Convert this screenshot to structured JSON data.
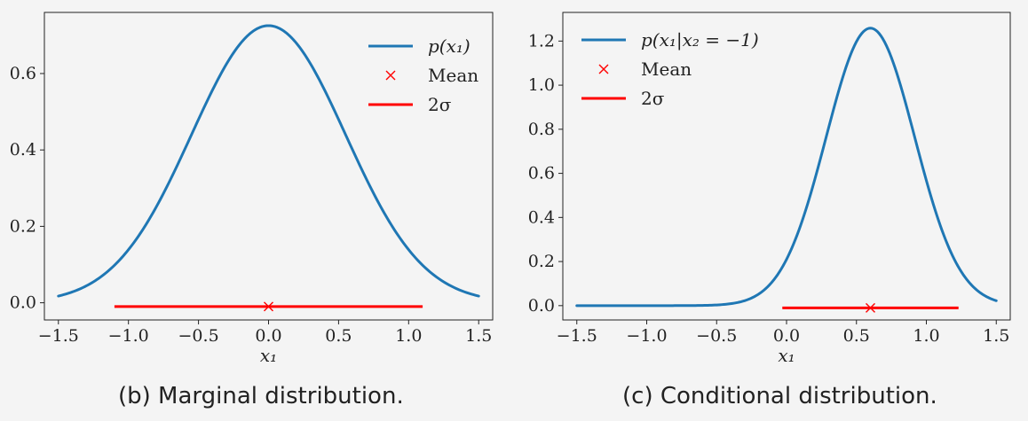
{
  "chart_data": [
    {
      "type": "line",
      "caption": "(b) Marginal distribution.",
      "xlabel": "x₁",
      "ylabel": "",
      "xlim": [
        -1.6,
        1.6
      ],
      "ylim": [
        -0.045,
        0.76
      ],
      "xticks": [
        -1.5,
        -1.0,
        -0.5,
        0.0,
        0.5,
        1.0,
        1.5
      ],
      "xtick_labels": [
        "−1.5",
        "−1.0",
        "−0.5",
        "0.0",
        "0.5",
        "1.0",
        "1.5"
      ],
      "yticks": [
        0.0,
        0.2,
        0.4,
        0.6
      ],
      "ytick_labels": [
        "0.0",
        "0.2",
        "0.4",
        "0.6"
      ],
      "series": [
        {
          "name": "p(x₁)",
          "kind": "curve",
          "color": "#1f77b4",
          "distribution": "normal",
          "mean": 0.0,
          "std": 0.55,
          "x_range": [
            -1.5,
            1.5
          ]
        }
      ],
      "mean_marker": {
        "name": "Mean",
        "x": 0.0,
        "y": -0.01,
        "color": "#ff0000"
      },
      "two_sigma": {
        "name": "2σ",
        "x_range": [
          -1.1,
          1.1
        ],
        "y": -0.01,
        "color": "#ff0000"
      },
      "legend": {
        "position": "top-right",
        "entries": [
          {
            "kind": "line",
            "label": "p(x₁)",
            "color": "#1f77b4"
          },
          {
            "kind": "marker",
            "label": "Mean",
            "color": "#ff0000"
          },
          {
            "kind": "line",
            "label": "2σ",
            "color": "#ff0000"
          }
        ]
      }
    },
    {
      "type": "line",
      "caption": "(c) Conditional distribution.",
      "xlabel": "x₁",
      "ylabel": "",
      "xlim": [
        -1.6,
        1.6
      ],
      "ylim": [
        -0.065,
        1.33
      ],
      "xticks": [
        -1.5,
        -1.0,
        -0.5,
        0.0,
        0.5,
        1.0,
        1.5
      ],
      "xtick_labels": [
        "−1.5",
        "−1.0",
        "−0.5",
        "0.0",
        "0.5",
        "1.0",
        "1.5"
      ],
      "yticks": [
        0.0,
        0.2,
        0.4,
        0.6,
        0.8,
        1.0,
        1.2
      ],
      "ytick_labels": [
        "0.0",
        "0.2",
        "0.4",
        "0.6",
        "0.8",
        "1.0",
        "1.2"
      ],
      "series": [
        {
          "name": "p(x₁|x₂ = −1)",
          "kind": "curve",
          "color": "#1f77b4",
          "distribution": "normal",
          "mean": 0.6,
          "std": 0.317,
          "x_range": [
            -1.5,
            1.5
          ]
        }
      ],
      "mean_marker": {
        "name": "Mean",
        "x": 0.6,
        "y": -0.01,
        "color": "#ff0000"
      },
      "two_sigma": {
        "name": "2σ",
        "x_range": [
          -0.03,
          1.23
        ],
        "y": -0.01,
        "color": "#ff0000"
      },
      "legend": {
        "position": "top-left",
        "entries": [
          {
            "kind": "line",
            "label": "p(x₁|x₂ = −1)",
            "color": "#1f77b4"
          },
          {
            "kind": "marker",
            "label": "Mean",
            "color": "#ff0000"
          },
          {
            "kind": "line",
            "label": "2σ",
            "color": "#ff0000"
          }
        ]
      }
    }
  ]
}
